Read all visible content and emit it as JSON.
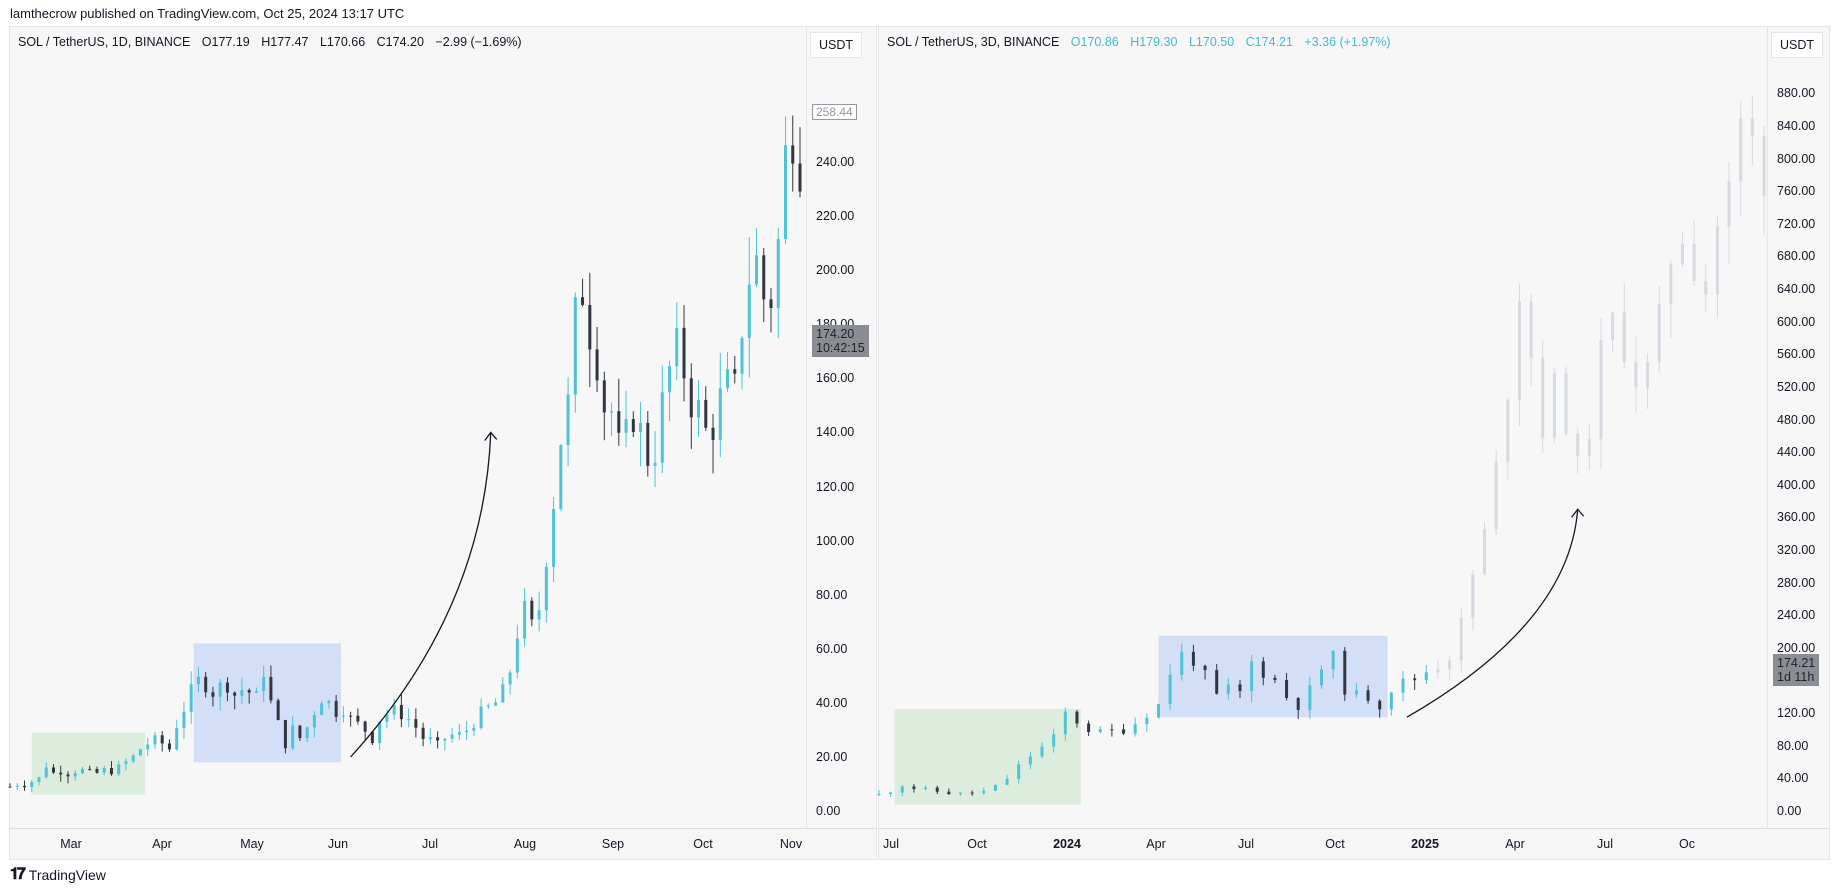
{
  "publish_line": "lamthecrow published on TradingView.com, Oct 25, 2024 13:17 UTC",
  "footer": {
    "logo_icon": "tradingview-logo-icon",
    "brand": "TradingView"
  },
  "colors": {
    "up": "#4fc3d6",
    "down": "#2f3640",
    "ghost": "#d5d9e0",
    "green_box": "#d8ebd8",
    "blue_box": "#ccd9f7",
    "price_tag": "#8b8d94"
  },
  "chart_data": [
    {
      "type": "candlestick",
      "title": "SOL / TetherUS, 1D, BINANCE",
      "ohlc_labels": {
        "open": "O177.19",
        "high": "H177.47",
        "low": "L170.66",
        "close": "C174.20",
        "change": "−2.99 (−1.69%)"
      },
      "currency": "USDT",
      "ylim": [
        0,
        260
      ],
      "yticks": [
        "0.00",
        "20.00",
        "40.00",
        "60.00",
        "80.00",
        "100.00",
        "120.00",
        "140.00",
        "160.00",
        "180.00",
        "200.00",
        "220.00",
        "240.00"
      ],
      "xticks": [
        "Mar",
        "Apr",
        "May",
        "Jun",
        "Jul",
        "Aug",
        "Sep",
        "Oct",
        "Nov"
      ],
      "last_price": {
        "value": "174.20",
        "countdown": "10:42:15"
      },
      "high_marker": "258.44",
      "price_path": [
        [
          0,
          9
        ],
        [
          3,
          10
        ],
        [
          6,
          10
        ],
        [
          9,
          11
        ],
        [
          12,
          12
        ],
        [
          15,
          17
        ],
        [
          18,
          14
        ],
        [
          21,
          15
        ],
        [
          24,
          14
        ],
        [
          27,
          15
        ],
        [
          30,
          15
        ],
        [
          33,
          14
        ],
        [
          36,
          14
        ],
        [
          39,
          15
        ],
        [
          42,
          15
        ],
        [
          45,
          16
        ],
        [
          48,
          18
        ],
        [
          51,
          20
        ],
        [
          54,
          23
        ],
        [
          57,
          25
        ],
        [
          60,
          26
        ],
        [
          63,
          25
        ],
        [
          66,
          23
        ],
        [
          69,
          32
        ],
        [
          72,
          38
        ],
        [
          75,
          44
        ],
        [
          78,
          48
        ],
        [
          81,
          47
        ],
        [
          84,
          44
        ],
        [
          87,
          46
        ],
        [
          90,
          47
        ],
        [
          93,
          43
        ],
        [
          96,
          45
        ],
        [
          99,
          44
        ],
        [
          102,
          42
        ],
        [
          105,
          52
        ],
        [
          108,
          40
        ],
        [
          111,
          32
        ],
        [
          114,
          25
        ],
        [
          117,
          30
        ],
        [
          120,
          27
        ],
        [
          123,
          31
        ],
        [
          126,
          37
        ],
        [
          129,
          42
        ],
        [
          132,
          40
        ],
        [
          135,
          37
        ],
        [
          138,
          38
        ],
        [
          141,
          34
        ],
        [
          144,
          32
        ],
        [
          147,
          30
        ],
        [
          150,
          27
        ],
        [
          153,
          34
        ],
        [
          156,
          36
        ],
        [
          159,
          37
        ],
        [
          162,
          36
        ],
        [
          165,
          34
        ],
        [
          168,
          31
        ],
        [
          171,
          27
        ],
        [
          174,
          26
        ],
        [
          177,
          24
        ],
        [
          180,
          27
        ],
        [
          183,
          28
        ],
        [
          186,
          28
        ],
        [
          189,
          30
        ],
        [
          192,
          33
        ],
        [
          195,
          36
        ],
        [
          198,
          38
        ],
        [
          201,
          40
        ],
        [
          204,
          44
        ],
        [
          207,
          52
        ],
        [
          210,
          66
        ],
        [
          213,
          74
        ],
        [
          216,
          68
        ],
        [
          219,
          75
        ],
        [
          222,
          95
        ],
        [
          225,
          115
        ],
        [
          228,
          138
        ],
        [
          231,
          150
        ],
        [
          234,
          182
        ],
        [
          237,
          193
        ],
        [
          240,
          178
        ],
        [
          243,
          168
        ],
        [
          246,
          150
        ],
        [
          249,
          148
        ],
        [
          252,
          134
        ],
        [
          255,
          138
        ],
        [
          258,
          147
        ],
        [
          261,
          140
        ],
        [
          264,
          131
        ],
        [
          267,
          134
        ],
        [
          270,
          150
        ],
        [
          273,
          163
        ],
        [
          276,
          170
        ],
        [
          279,
          163
        ],
        [
          282,
          152
        ],
        [
          285,
          148
        ],
        [
          288,
          140
        ],
        [
          291,
          143
        ],
        [
          294,
          152
        ],
        [
          297,
          157
        ],
        [
          300,
          155
        ],
        [
          303,
          180
        ],
        [
          306,
          198
        ],
        [
          309,
          203
        ],
        [
          312,
          190
        ],
        [
          315,
          190
        ],
        [
          318,
          210
        ],
        [
          321,
          242
        ],
        [
          324,
          253
        ],
        [
          327,
          242
        ]
      ],
      "highlight_boxes": [
        {
          "color": "green",
          "from": 9,
          "to": 56,
          "low": 6,
          "high": 29
        },
        {
          "color": "blue",
          "from": 76,
          "to": 137,
          "low": 18,
          "high": 62
        }
      ],
      "arrow": {
        "from": [
          141,
          20
        ],
        "to": [
          199,
          140
        ]
      }
    },
    {
      "type": "candlestick",
      "title": "SOL / TetherUS, 3D, BINANCE",
      "ohlc_labels": {
        "open": "O170.86",
        "high": "H179.30",
        "low": "L170.50",
        "close": "C174.21",
        "change": "+3.36 (+1.97%)"
      },
      "currency": "USDT",
      "ylim": [
        0,
        900
      ],
      "yticks": [
        "0.00",
        "40.00",
        "80.00",
        "120.00",
        "200.00",
        "240.00",
        "280.00",
        "320.00",
        "360.00",
        "400.00",
        "440.00",
        "480.00",
        "520.00",
        "560.00",
        "600.00",
        "640.00",
        "680.00",
        "720.00",
        "760.00",
        "800.00",
        "840.00",
        "880.00"
      ],
      "xticks": [
        {
          "label": "Jul",
          "bold": false
        },
        {
          "label": "Oct",
          "bold": false
        },
        {
          "label": "2024",
          "bold": true
        },
        {
          "label": "Apr",
          "bold": false
        },
        {
          "label": "Jul",
          "bold": false
        },
        {
          "label": "Oct",
          "bold": false
        },
        {
          "label": "2025",
          "bold": true
        },
        {
          "label": "Apr",
          "bold": false
        },
        {
          "label": "Jul",
          "bold": false
        },
        {
          "label": "Oc",
          "bold": false
        }
      ],
      "last_price": {
        "value": "174.21",
        "countdown": "1d 11h"
      },
      "price_path": [
        [
          0,
          20
        ],
        [
          3,
          25
        ],
        [
          6,
          32
        ],
        [
          9,
          28
        ],
        [
          12,
          26
        ],
        [
          15,
          24
        ],
        [
          18,
          22
        ],
        [
          21,
          21
        ],
        [
          24,
          22
        ],
        [
          27,
          24
        ],
        [
          30,
          30
        ],
        [
          33,
          40
        ],
        [
          36,
          55
        ],
        [
          39,
          68
        ],
        [
          42,
          78
        ],
        [
          45,
          90
        ],
        [
          48,
          120
        ],
        [
          51,
          110
        ],
        [
          54,
          100
        ],
        [
          57,
          96
        ],
        [
          60,
          98
        ],
        [
          63,
          100
        ],
        [
          66,
          108
        ],
        [
          69,
          120
        ],
        [
          72,
          130
        ],
        [
          75,
          170
        ],
        [
          78,
          192
        ],
        [
          81,
          185
        ],
        [
          84,
          165
        ],
        [
          87,
          140
        ],
        [
          90,
          150
        ],
        [
          93,
          145
        ],
        [
          96,
          182
        ],
        [
          99,
          170
        ],
        [
          102,
          160
        ],
        [
          105,
          140
        ],
        [
          108,
          130
        ],
        [
          111,
          148
        ],
        [
          114,
          175
        ],
        [
          117,
          188
        ],
        [
          120,
          150
        ],
        [
          123,
          142
        ],
        [
          126,
          140
        ],
        [
          129,
          130
        ],
        [
          132,
          150
        ],
        [
          135,
          158
        ],
        [
          138,
          162
        ],
        [
          141,
          172
        ],
        [
          144,
          180
        ],
        [
          147,
          190
        ],
        [
          150,
          230
        ],
        [
          153,
          290
        ],
        [
          156,
          340
        ],
        [
          159,
          420
        ],
        [
          162,
          520
        ],
        [
          165,
          640
        ],
        [
          168,
          560
        ],
        [
          171,
          470
        ],
        [
          174,
          520
        ],
        [
          177,
          480
        ],
        [
          180,
          420
        ],
        [
          183,
          470
        ],
        [
          186,
          560
        ],
        [
          189,
          600
        ],
        [
          192,
          570
        ],
        [
          195,
          530
        ],
        [
          198,
          540
        ],
        [
          201,
          600
        ],
        [
          204,
          680
        ],
        [
          207,
          710
        ],
        [
          210,
          670
        ],
        [
          213,
          640
        ],
        [
          216,
          720
        ],
        [
          219,
          760
        ],
        [
          222,
          840
        ],
        [
          225,
          820
        ],
        [
          228,
          780
        ]
      ],
      "real_until_index": 47,
      "highlight_boxes": [
        {
          "color": "green",
          "from": 4,
          "to": 52,
          "low": 8,
          "high": 125
        },
        {
          "color": "blue",
          "from": 72,
          "to": 131,
          "low": 115,
          "high": 215
        }
      ],
      "arrow": {
        "from": [
          136,
          115
        ],
        "to": [
          180,
          370
        ]
      }
    }
  ]
}
